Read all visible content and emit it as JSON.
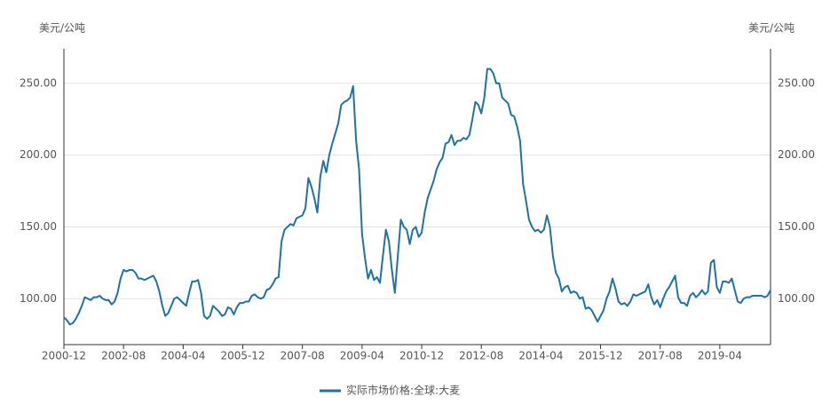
{
  "chart_data": {
    "type": "line",
    "y_axis_label": "美元/公吨",
    "y2_axis_label": "美元/公吨",
    "categories": [
      "2000-12",
      null,
      null,
      null,
      null,
      null,
      null,
      null,
      null,
      null,
      null,
      null,
      null,
      null,
      null,
      null,
      null,
      null,
      null,
      null,
      "2002-08",
      null,
      null,
      null,
      null,
      null,
      null,
      null,
      null,
      null,
      null,
      null,
      null,
      null,
      null,
      null,
      null,
      null,
      null,
      null,
      "2004-04",
      null,
      null,
      null,
      null,
      null,
      null,
      null,
      null,
      null,
      null,
      null,
      null,
      null,
      null,
      null,
      null,
      null,
      null,
      null,
      "2005-12",
      null,
      null,
      null,
      null,
      null,
      null,
      null,
      null,
      null,
      null,
      null,
      null,
      null,
      null,
      null,
      null,
      null,
      null,
      null,
      "2007-08",
      null,
      null,
      null,
      null,
      null,
      null,
      null,
      null,
      null,
      null,
      null,
      null,
      null,
      null,
      null,
      null,
      null,
      null,
      null,
      "2009-04",
      null,
      null,
      null,
      null,
      null,
      null,
      null,
      null,
      null,
      null,
      null,
      null,
      null,
      null,
      null,
      null,
      null,
      null,
      null,
      "2010-12",
      null,
      null,
      null,
      null,
      null,
      null,
      null,
      null,
      null,
      null,
      null,
      null,
      null,
      null,
      null,
      null,
      null,
      null,
      null,
      "2012-08",
      null,
      null,
      null,
      null,
      null,
      null,
      null,
      null,
      null,
      null,
      null,
      null,
      null,
      null,
      null,
      null,
      null,
      null,
      null,
      "2014-04",
      null,
      null,
      null,
      null,
      null,
      null,
      null,
      null,
      null,
      null,
      null,
      null,
      null,
      null,
      null,
      null,
      null,
      null,
      null,
      "2015-12",
      null,
      null,
      null,
      null,
      null,
      null,
      null,
      null,
      null,
      null,
      null,
      null,
      null,
      null,
      null,
      null,
      null,
      null,
      null,
      "2017-08",
      null,
      null,
      null,
      null,
      null,
      null,
      null,
      null,
      null,
      null,
      null,
      null,
      null,
      null,
      null,
      null,
      null,
      null,
      null,
      "2019-04",
      null,
      null,
      null,
      null,
      null,
      null,
      null,
      null,
      null,
      null,
      null,
      null,
      null,
      null,
      null,
      null,
      null
    ],
    "series": [
      {
        "name": "实际市场价格:全球:大麦",
        "color": "#21739e",
        "values": [
          87,
          85,
          82,
          83,
          86,
          90,
          95,
          101,
          100,
          99,
          101,
          101,
          102,
          100,
          99,
          99,
          96,
          98,
          104,
          114,
          120,
          119,
          120,
          120,
          118,
          114,
          114,
          113,
          114,
          115,
          116,
          112,
          105,
          95,
          88,
          90,
          95,
          100,
          101,
          99,
          97,
          95,
          104,
          112,
          112,
          113,
          104,
          88,
          86,
          88,
          95,
          93,
          91,
          88,
          89,
          94,
          93,
          89,
          94,
          97,
          97,
          98,
          98,
          102,
          103,
          101,
          100,
          101,
          106,
          107,
          110,
          114,
          115,
          140,
          148,
          150,
          152,
          151,
          156,
          157,
          158,
          163,
          184,
          178,
          170,
          160,
          185,
          196,
          188,
          200,
          208,
          215,
          222,
          235,
          237,
          238,
          240,
          248,
          210,
          190,
          145,
          128,
          114,
          120,
          113,
          115,
          111,
          130,
          148,
          140,
          120,
          104,
          130,
          155,
          150,
          148,
          138,
          148,
          150,
          143,
          146,
          160,
          170,
          176,
          182,
          190,
          195,
          198,
          208,
          209,
          214,
          207,
          210,
          210,
          212,
          211,
          214,
          225,
          237,
          235,
          229,
          240,
          260,
          260,
          257,
          250,
          250,
          240,
          238,
          236,
          228,
          227,
          220,
          210,
          180,
          168,
          155,
          150,
          147,
          148,
          146,
          148,
          158,
          150,
          130,
          118,
          114,
          105,
          108,
          109,
          104,
          105,
          104,
          100,
          101,
          93,
          94,
          92,
          88,
          84,
          88,
          92,
          100,
          105,
          114,
          107,
          98,
          96,
          97,
          95,
          98,
          103,
          102,
          103,
          104,
          105,
          110,
          101,
          96,
          99,
          94,
          100,
          105,
          108,
          112,
          116,
          101,
          97,
          97,
          95,
          102,
          104,
          101,
          103,
          106,
          103,
          105,
          125,
          127,
          108,
          104,
          112,
          112,
          111,
          114,
          106,
          98,
          97,
          100,
          101,
          101,
          102,
          102,
          102,
          102,
          101,
          102,
          106
        ]
      }
    ],
    "ylim": [
      68,
      274
    ],
    "yticks": [
      {
        "value": 100,
        "label": "100.00"
      },
      {
        "value": 150,
        "label": "150.00"
      },
      {
        "value": 200,
        "label": "200.00"
      },
      {
        "value": 250,
        "label": "250.00"
      }
    ],
    "grid": true,
    "legend": "bottom"
  }
}
